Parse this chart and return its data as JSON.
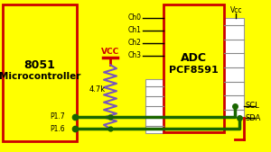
{
  "bg_color": "#FFFF00",
  "red": "#CC0000",
  "green_wire": "#1a6600",
  "blue_violet": "#7755BB",
  "black": "#000000",
  "white": "#FFFFFF",
  "fig_w": 3.0,
  "fig_h": 1.69,
  "dpi": 100,
  "uc_label1": "8051",
  "uc_label2": "Microcontroller",
  "adc_label1": "ADC",
  "adc_label2": "PCF8591",
  "vcc_label": "VCC",
  "resistor_label": "4.7k",
  "p17_label": "P1.7",
  "p16_label": "P1.6",
  "scl_label": "SCL",
  "sda_label": "SDA",
  "vcc_top_label": "Vcc",
  "ch_labels": [
    "Ch0",
    "Ch1",
    "Ch2",
    "Ch3"
  ]
}
